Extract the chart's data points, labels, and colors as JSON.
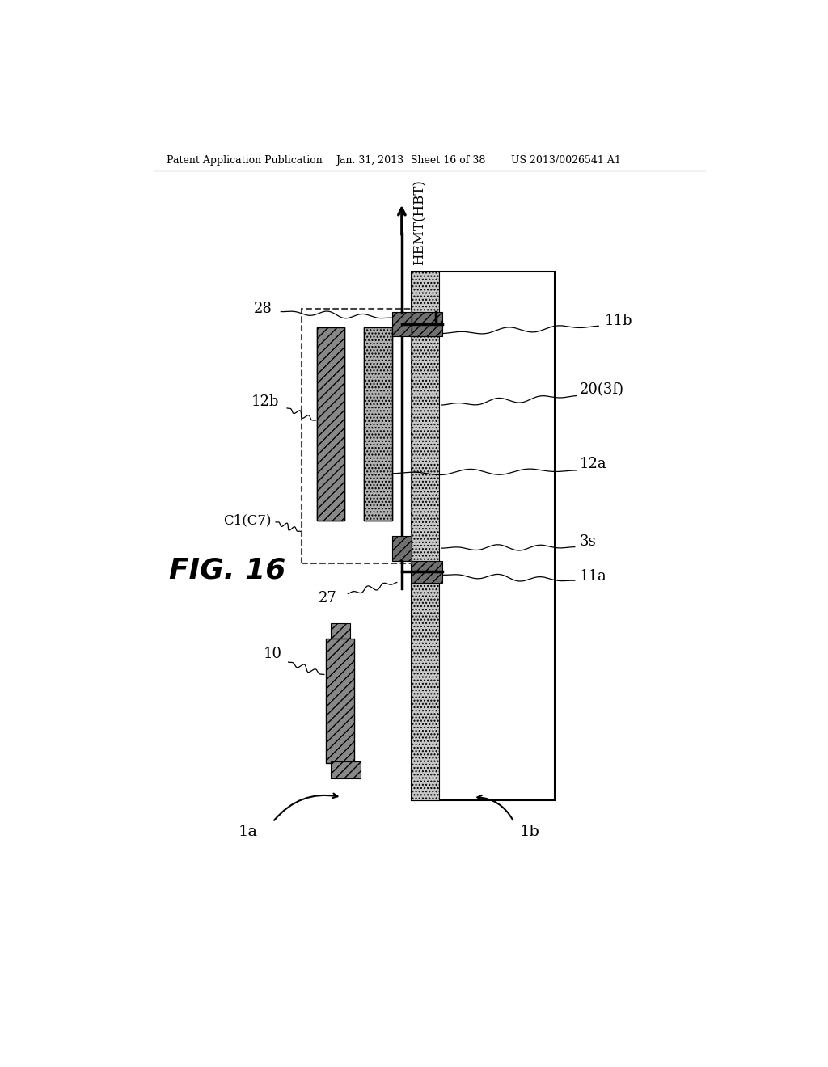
{
  "bg_color": "#ffffff",
  "header_text1": "Patent Application Publication",
  "header_text2": "Jan. 31, 2013",
  "header_text3": "Sheet 16 of 38",
  "header_text4": "US 2013/0026541 A1",
  "fig_label": "FIG. 16",
  "hemt_label": "HEMT(HBT)",
  "label_28": "28",
  "label_12b": "12b",
  "label_C1C7": "C1(C7)",
  "label_27": "27",
  "label_10": "10",
  "label_1a": "1a",
  "label_1b": "1b",
  "label_11b": "11b",
  "label_20_3f": "20(3f)",
  "label_12a": "12a",
  "label_3s": "3s",
  "label_11a": "11a"
}
